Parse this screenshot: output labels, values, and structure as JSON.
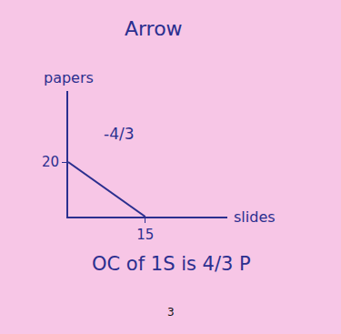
{
  "chart_data": {
    "type": "line",
    "title": "Arrow",
    "x_label": "slides",
    "y_label": "papers",
    "x": [
      0,
      15
    ],
    "values": [
      20,
      0
    ],
    "color": "#2b2f8f",
    "xlim": [
      0,
      31
    ],
    "ylim": [
      0,
      46
    ],
    "xticks": [
      15
    ],
    "yticks": [
      20
    ],
    "grid": false,
    "annotations": [
      "-4/3",
      "OC of 1S is 4/3 P",
      "3"
    ]
  }
}
